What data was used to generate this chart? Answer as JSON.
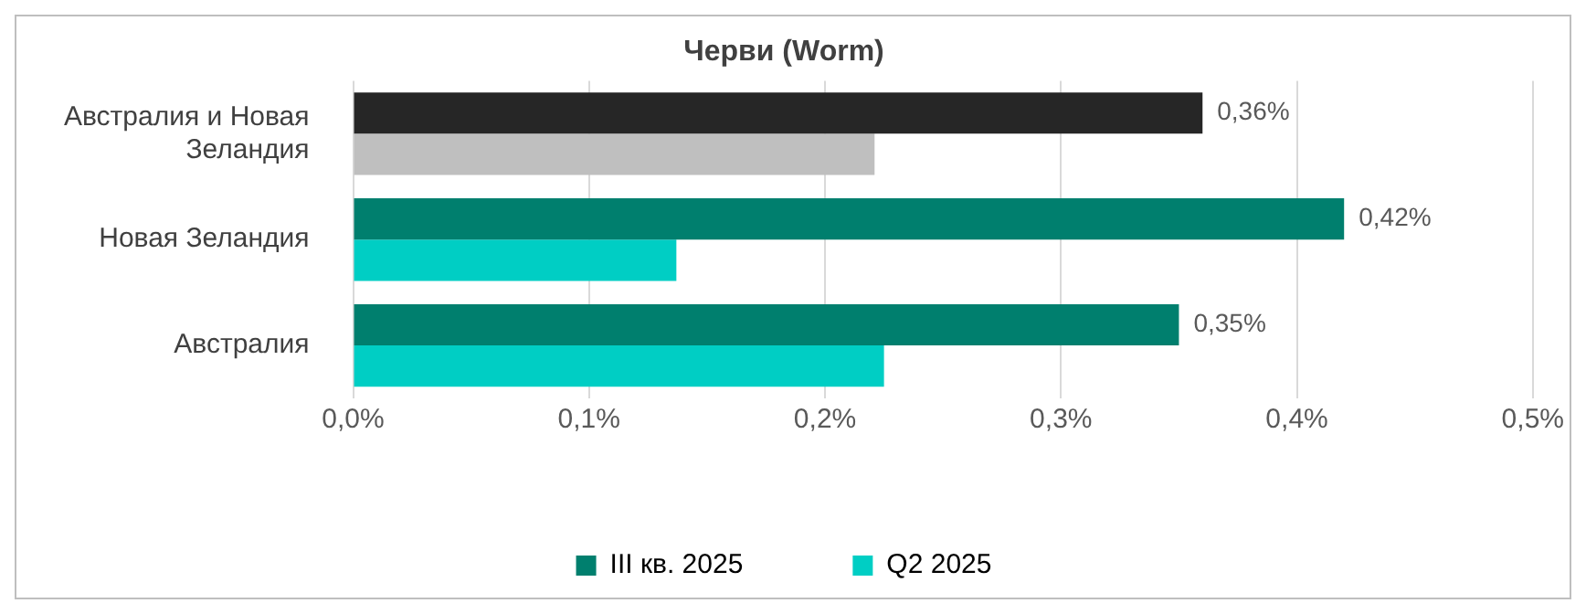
{
  "chart_data": {
    "type": "bar",
    "orientation": "horizontal",
    "title": "Черви (Worm)",
    "categories": [
      "Австралия и Новая Зеландия",
      "Новая Зеландия",
      "Австралия"
    ],
    "series": [
      {
        "name": "III кв. 2025",
        "color": "#007f6e",
        "colors": [
          "#262626",
          "#007f6e",
          "#007f6e"
        ],
        "values": [
          0.36,
          0.42,
          0.35
        ],
        "value_labels": [
          "0,36%",
          "0,42%",
          "0,35%"
        ]
      },
      {
        "name": "Q2 2025",
        "color": "#00cec4",
        "colors": [
          "#bfbfbf",
          "#00cec4",
          "#00cec4"
        ],
        "values": [
          0.221,
          0.137,
          0.225
        ]
      }
    ],
    "xlim": [
      0,
      0.5
    ],
    "xticks": [
      {
        "value": 0,
        "label": "0,0%"
      },
      {
        "value": 0.1,
        "label": "0,1%"
      },
      {
        "value": 0.2,
        "label": "0,2%"
      },
      {
        "value": 0.3,
        "label": "0,3%"
      },
      {
        "value": 0.4,
        "label": "0,4%"
      },
      {
        "value": 0.5,
        "label": "0,5%"
      }
    ],
    "grid": "x",
    "legend": "bottom"
  }
}
